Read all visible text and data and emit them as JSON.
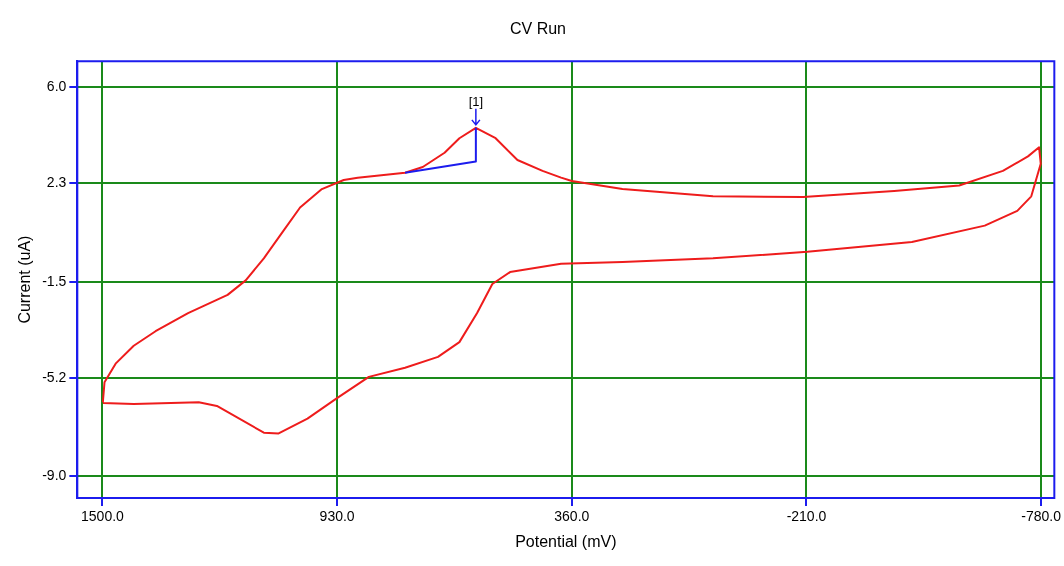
{
  "chart_data": {
    "type": "line",
    "title": "CV Run",
    "xlabel": "Potential (mV)",
    "ylabel": "Current (uA)",
    "series": [
      {
        "color": "#ee1c1c",
        "x": [
          1499,
          1495,
          1468,
          1424,
          1371,
          1292,
          1196,
          1152,
          1108,
          1064,
          1020,
          967,
          914,
          880,
          765,
          722,
          669,
          633,
          593,
          545,
          492,
          431,
          386,
          360,
          237,
          17,
          -202,
          -423,
          -581,
          -687,
          -748,
          -775,
          -779,
          -756,
          -722,
          -643,
          -466,
          -212,
          17,
          237,
          386,
          510,
          553,
          590,
          633,
          685,
          765,
          853,
          932,
          1002,
          1072,
          1108,
          1222,
          1266,
          1424,
          1499
        ],
        "values": [
          -6.15,
          -5.38,
          -4.66,
          -3.97,
          -3.41,
          -2.71,
          -2.01,
          -1.45,
          -0.6,
          0.38,
          1.36,
          2.07,
          2.42,
          2.51,
          2.7,
          2.92,
          3.47,
          4.03,
          4.43,
          4.03,
          3.19,
          2.77,
          2.51,
          2.38,
          2.07,
          1.79,
          1.76,
          2.0,
          2.21,
          2.77,
          3.33,
          3.68,
          3.05,
          1.79,
          1.23,
          0.66,
          0.03,
          -0.35,
          -0.6,
          -0.74,
          -0.81,
          -1.13,
          -1.59,
          -2.71,
          -3.83,
          -4.4,
          -4.82,
          -5.17,
          -6.01,
          -6.78,
          -7.35,
          -7.32,
          -6.29,
          -6.15,
          -6.22,
          -6.18
        ]
      },
      {
        "color": "#1c1cee",
        "x": [
          765,
          593,
          593
        ],
        "values": [
          2.7,
          3.13,
          4.43
        ]
      }
    ],
    "annotations": [
      {
        "text": "[1]",
        "x": 593,
        "y": 4.43
      }
    ],
    "xlim": [
      1561,
      -812
    ],
    "xticks": [
      {
        "value": 1500,
        "label": "1500.0"
      },
      {
        "value": 930,
        "label": "930.0"
      },
      {
        "value": 360,
        "label": "360.0"
      },
      {
        "value": -210,
        "label": "-210.0"
      },
      {
        "value": -780,
        "label": "-780.0"
      }
    ],
    "ylim": [
      -9.84,
      7.0
    ],
    "yticks": [
      {
        "value": 6,
        "label": "6.0"
      },
      {
        "value": 2.3,
        "label": "2.3"
      },
      {
        "value": -1.5,
        "label": "-1.5"
      },
      {
        "value": -5.2,
        "label": "-5.2"
      },
      {
        "value": -9,
        "label": "-9.0"
      }
    ],
    "grid": true,
    "legend": false,
    "marker": "none",
    "line_style": "solid"
  }
}
